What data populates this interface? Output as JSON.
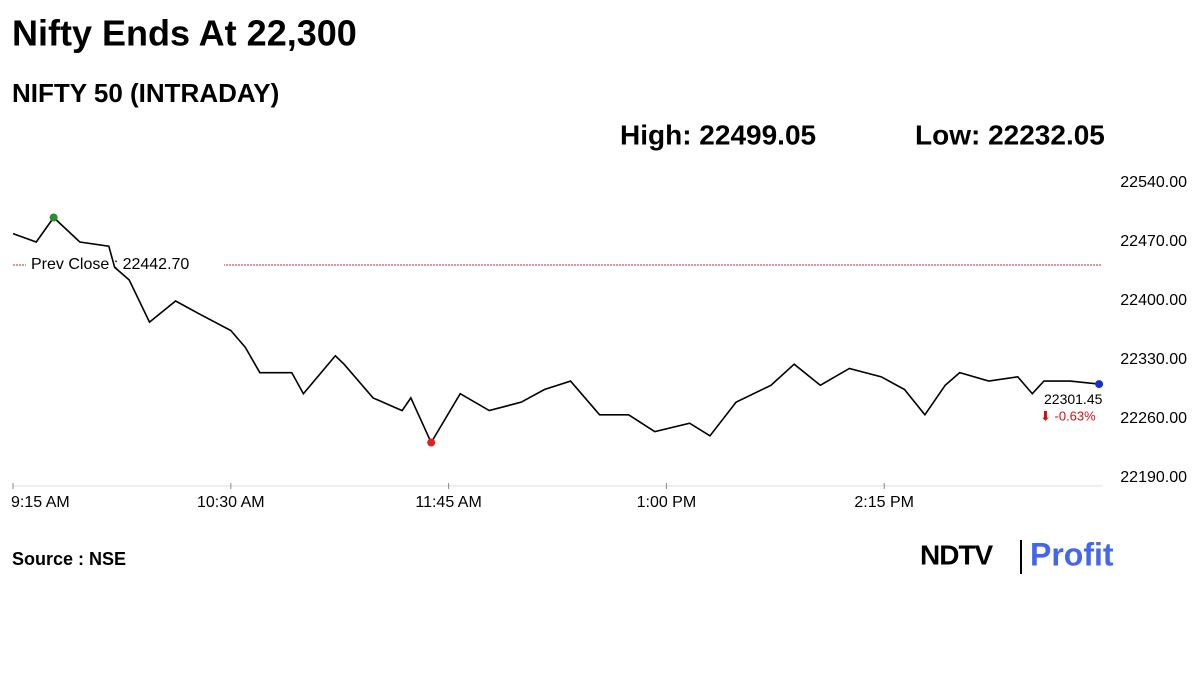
{
  "chart_data": {
    "type": "line",
    "title": "Nifty Ends At 22,300",
    "subtitle": "NIFTY 50 (INTRADAY)",
    "high_label": "High: 22499.05",
    "low_label": "Low: 22232.05",
    "reference_line": {
      "label": "Prev Close : 22442.70",
      "value": 22442.7,
      "color": "#a33"
    },
    "last_label": "22301.45",
    "change_label": "⬇ -0.63%",
    "source": "Source : NSE",
    "logo": [
      "NDTV",
      "Profit"
    ],
    "x": [
      555,
      563,
      569,
      578,
      588,
      590,
      595,
      602,
      611,
      619,
      630,
      635,
      640,
      651,
      655,
      666,
      669,
      679,
      689,
      692,
      699,
      709,
      719,
      730,
      738,
      747,
      757,
      767,
      776,
      788,
      795,
      804,
      816,
      824,
      833,
      843,
      854,
      862,
      869,
      876,
      881,
      891,
      901,
      906,
      910,
      919,
      929
    ],
    "series": [
      {
        "color": "#000000",
        "values": [
          22480,
          22470,
          22499.05,
          22470,
          22465,
          22440,
          22425,
          22375,
          22400,
          22385,
          22365,
          22345,
          22315,
          22315,
          22290,
          22335,
          22325,
          22285,
          22270,
          22285,
          22232.05,
          22290,
          22270,
          22280,
          22295,
          22305,
          22265,
          22265,
          22245,
          22255,
          22240,
          22280,
          22300,
          22325,
          22300,
          22320,
          22310,
          22295,
          22265,
          22300,
          22315,
          22305,
          22310,
          22290,
          22305,
          22305,
          22301.45
        ]
      }
    ],
    "markers": [
      {
        "index": 2,
        "color": "#2e8b2e"
      },
      {
        "index": 20,
        "color": "#e02020"
      },
      {
        "index": 46,
        "color": "#1a2fd0"
      }
    ],
    "xlim": [
      555,
      930
    ],
    "xticks": [
      {
        "value": 555,
        "label": "9:15 AM"
      },
      {
        "value": 630,
        "label": "10:30 AM"
      },
      {
        "value": 705,
        "label": "11:45 AM"
      },
      {
        "value": 780,
        "label": "1:00 PM"
      },
      {
        "value": 855,
        "label": "2:15 PM"
      }
    ],
    "ylim": [
      22190,
      22540
    ],
    "yticks": [
      {
        "value": 22540,
        "label": "22540.00"
      },
      {
        "value": 22470,
        "label": "22470.00"
      },
      {
        "value": 22400,
        "label": "22400.00"
      },
      {
        "value": 22330,
        "label": "22330.00"
      },
      {
        "value": 22260,
        "label": "22260.00"
      },
      {
        "value": 22190,
        "label": "22190.00"
      }
    ],
    "grid": false
  }
}
